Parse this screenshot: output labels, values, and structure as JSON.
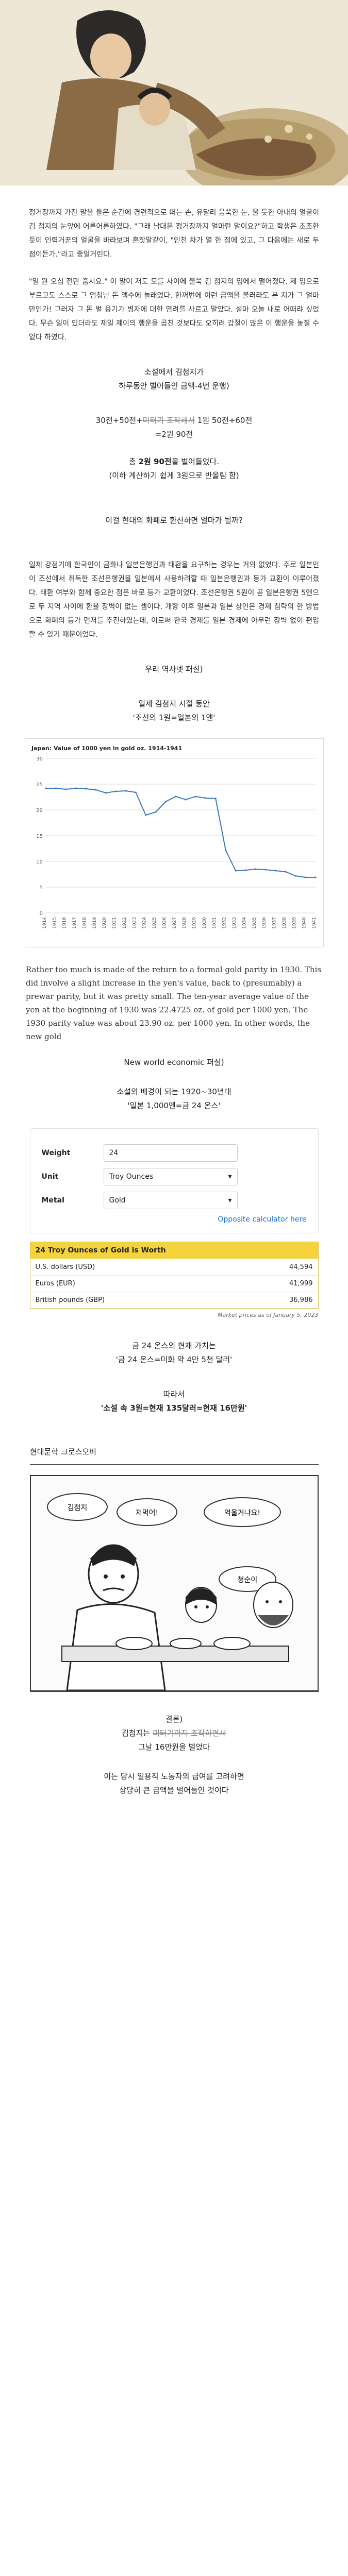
{
  "intro_paragraphs": [
    "정거장까지 가잔 말을 들은 순간에 경련적으로 떠는 손, 유달리 움쑥한 눈, 울 듯한 아내의 얼굴이 김 첨지의 눈앞에 어른어른하였다. \"그래 남대문 정거장까지 얼마란 말이요?\"하고 학생은 초조한 듯이 인력거꾼의 얼굴을 바라보며 혼잣말같이, \"인천 차가 열 한 점에 있고, 그 다음에는 새로 두 점이든가.\"라고 중얼거린다.",
    "\"일 원 오십 전만 줍시요.\" 이 말이 저도 모를 사이에 불쑥 김 첨지의 입에서 떨어졌다. 제 입으로 부르고도 스스로 그 엄청난 돈 액수에 놀래었다. 한꺼번에 이런 금액을 불러라도 본 지가 그 얼마만인가! 그러자 그 돈 벌 용기가 병자에 대한 염려를 사르고 말았다. 설마 오늘 내로 어떠랴 싶었다. 무슨 일이 있더라도 제일 제이의 행운을 곱친 것보다도 오히려 갑절이 많은 이 행운을 놓칠 수 없다 하였다."
  ],
  "summary_block": {
    "line1": "소설에서 김첨지가",
    "line2": "하루동안 벌어들인 금액-4번 운행)",
    "calc_a": "30전+50전+",
    "calc_strike": "미터기 조작해서",
    "calc_b": " 1원 50전+60전",
    "calc_c": "=2원 90전",
    "total_pre": "총 ",
    "total_amount": "2원 90전",
    "total_post": "을 벌어들었다.",
    "total_note": "(이하 계산하기 쉽게 3원으로 반올림 함)"
  },
  "question": "이걸 현대의 화폐로 환산하면 얼마가 될까?",
  "background_paragraph": "일제 강점기에 한국인이 금화나 일본은행권과 태환을 요구하는 경우는 거의 없었다. 주로 일본인이 조선에서 취득한 조선은행권을 일본에서 사용하려할 때 일본은행권과 등가 교환이 이루어졌다. 태환 여부와 함께 중요한 점은 바로 등가 교환이었다. 조선은행권 5원이 곧 일본은행권 5엔으로 두 지역 사이에 환율 장벽이 없는 셈이다. 개항 이후 일본과 일본 상인은 경제 침략의 한 방법으로 화폐의 등가 먼저를 추진하였는데, 이로써 한국 경제를 일본 경제에 아무런 장벽 없이 편입할 수 있기 때문이었다.",
  "source1": "우리 역사넷 퍼설)",
  "era_line1": "일제 김첨지 시절 동안",
  "era_line2": "'조선의 1원=일본의 1엔'",
  "chart_data": {
    "type": "line",
    "title": "Japan: Value of 1000 yen in gold oz. 1914-1941",
    "x": [
      1914,
      1915,
      1916,
      1917,
      1918,
      1919,
      1920,
      1921,
      1922,
      1923,
      1924,
      1925,
      1926,
      1927,
      1928,
      1929,
      1930,
      1931,
      1932,
      1933,
      1934,
      1935,
      1936,
      1937,
      1938,
      1939,
      1940,
      1941
    ],
    "series": [
      {
        "name": "",
        "values": [
          24.2,
          24.2,
          24.0,
          24.2,
          24.1,
          23.9,
          23.3,
          23.6,
          23.7,
          23.4,
          19.0,
          19.6,
          21.6,
          22.6,
          22.0,
          22.6,
          22.3,
          22.2,
          12.2,
          8.2,
          8.3,
          8.5,
          8.4,
          8.2,
          8.0,
          7.2,
          6.9,
          6.9
        ]
      }
    ],
    "ylim": [
      0,
      30
    ],
    "yticks": [
      0,
      5,
      10,
      15,
      20,
      25,
      30
    ],
    "grid": true,
    "color": "#3a7abf"
  },
  "english_paragraph": "Rather too much is made of the return to a formal gold parity in 1930. This did involve a slight increase in the yen's value, back to (presumably) a prewar parity, but it was pretty small. The ten-year average value of the yen at the beginning of 1930 was 22.4725 oz. of gold per 1000 yen. The 1930 parity value was about 23.90 oz. per 1000 yen. In other words, the new gold",
  "source2": "New world economic 퍼설)",
  "novel_line1": "소설의 배경이 되는 1920~30년대",
  "novel_line2": "'일본 1,000엔=금 24 온스'",
  "calculator": {
    "weight_label": "Weight",
    "weight_value": "24",
    "unit_label": "Unit",
    "unit_value": "Troy Ounces",
    "metal_label": "Metal",
    "metal_value": "Gold",
    "opposite_link": "Opposite calculator here",
    "table_header": "24 Troy Ounces of Gold is Worth",
    "rows": [
      {
        "currency": "U.S. dollars (USD)",
        "value": "44,594"
      },
      {
        "currency": "Euros (EUR)",
        "value": "41,999"
      },
      {
        "currency": "British pounds (GBP)",
        "value": "36,986"
      }
    ],
    "note": "Market prices as of January 5, 2023"
  },
  "gold_line1": "금 24 온스의 현재 가치는",
  "gold_line2": "'금 24 온스=미화 약 4만 5천 달러'",
  "therefore": "따라서",
  "conclusion_line": "'소설 속 3원=현재 135달러=현재 16만원'",
  "crossover_title": "현대문학 크로스오버",
  "comic_speech": [
    "김첨지",
    "저먹어!",
    "억울거냐요!",
    "청순이"
  ],
  "final_label": "결론)",
  "final_line1_a": "김첨지는 ",
  "final_line1_strike": "미터기까지 조작하면서",
  "final_line2": "그날 16만원을 벌었다",
  "final_line3": "이는 당시 일용직 노동자의 급여를 고려하면",
  "final_line4": "상당히 큰 금액을 벌어들인 것이다"
}
